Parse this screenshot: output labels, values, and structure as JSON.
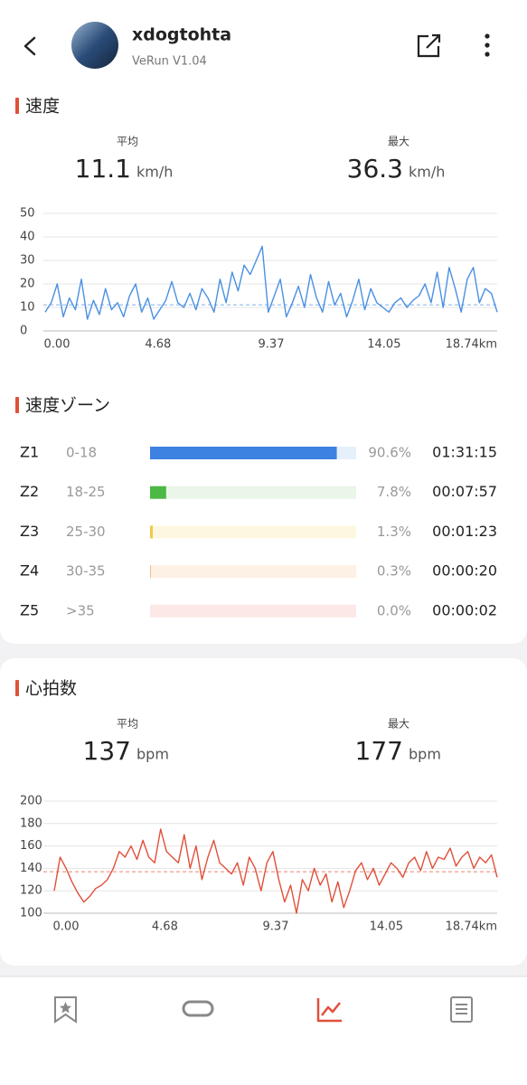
{
  "header": {
    "title": "xdogtohta",
    "subtitle": "VeRun V1.04"
  },
  "speed_stats": {
    "title": "速度",
    "average": {
      "label": "平均",
      "value": 11.1,
      "unit": "km/h"
    },
    "max": {
      "label": "最大",
      "value": 36.3,
      "unit": "km/h"
    }
  },
  "speed_zones": {
    "title": "速度ゾーン",
    "rows": [
      {
        "zone": "Z1",
        "range": "0-18",
        "percent": 90.6,
        "percent_label": "90.6%",
        "time": "01:31:15",
        "color": "#3d82e0",
        "track": "#e5f0fb"
      },
      {
        "zone": "Z2",
        "range": "18-25",
        "percent": 7.8,
        "percent_label": "7.8%",
        "time": "00:07:57",
        "color": "#4cb845",
        "track": "#e9f6e8"
      },
      {
        "zone": "Z3",
        "range": "25-30",
        "percent": 1.3,
        "percent_label": "1.3%",
        "time": "00:01:23",
        "color": "#f2c744",
        "track": "#fdf7e2"
      },
      {
        "zone": "Z4",
        "range": "30-35",
        "percent": 0.3,
        "percent_label": "0.3%",
        "time": "00:00:20",
        "color": "#f0a560",
        "track": "#fdf0e4"
      },
      {
        "zone": "Z5",
        "range": ">35",
        "percent": 0.0,
        "percent_label": "0.0%",
        "time": "00:00:02",
        "color": "#ee6b6b",
        "track": "#fde8e8"
      }
    ]
  },
  "heart_stats": {
    "title": "心拍数",
    "average": {
      "label": "平均",
      "value": 137,
      "unit": "bpm"
    },
    "max": {
      "label": "最大",
      "value": 177,
      "unit": "bpm"
    }
  },
  "chart_data": [
    {
      "type": "line",
      "color": "#4a90e2",
      "grid": true,
      "x": [
        0,
        0.25,
        0.5,
        0.75,
        1,
        1.25,
        1.5,
        1.75,
        2,
        2.25,
        2.5,
        2.75,
        3,
        3.25,
        3.5,
        3.75,
        4,
        4.25,
        4.5,
        4.75,
        5,
        5.25,
        5.5,
        5.75,
        6,
        6.25,
        6.5,
        6.75,
        7,
        7.25,
        7.5,
        7.75,
        8,
        8.25,
        8.5,
        8.75,
        9,
        9.25,
        9.5,
        9.75,
        10,
        10.25,
        10.5,
        10.75,
        11,
        11.25,
        11.5,
        11.75,
        12,
        12.25,
        12.5,
        12.75,
        13,
        13.25,
        13.5,
        13.75,
        14,
        14.25,
        14.5,
        14.75,
        15,
        15.25,
        15.5,
        15.75,
        16,
        16.25,
        16.5,
        16.75,
        17,
        17.25,
        17.5,
        17.75,
        18,
        18.25,
        18.5,
        18.74
      ],
      "values": [
        8,
        12,
        20,
        6,
        14,
        9,
        22,
        5,
        13,
        7,
        18,
        9,
        12,
        6,
        15,
        20,
        8,
        14,
        5,
        9,
        13,
        21,
        12,
        10,
        16,
        9,
        18,
        14,
        8,
        22,
        12,
        25,
        17,
        28,
        24,
        30,
        36,
        8,
        15,
        22,
        6,
        12,
        19,
        10,
        24,
        14,
        8,
        21,
        11,
        16,
        6,
        13,
        22,
        9,
        18,
        12,
        10,
        8,
        12,
        14,
        10,
        13,
        15,
        20,
        12,
        25,
        10,
        27,
        18,
        8,
        22,
        27,
        12,
        18,
        16,
        8
      ],
      "xlim": [
        0,
        18.74
      ],
      "xticks": [
        {
          "value": 0,
          "label": "0.00"
        },
        4.68,
        9.37,
        14.05,
        {
          "value": 18.74,
          "label": "18.74km"
        }
      ],
      "ylim": [
        0,
        50
      ],
      "yticks": [
        0,
        10,
        20,
        30,
        40,
        50
      ]
    },
    {
      "type": "line",
      "color": "#e0503a",
      "grid": true,
      "x": [
        0,
        0.25,
        0.5,
        0.75,
        1,
        1.25,
        1.5,
        1.75,
        2,
        2.25,
        2.5,
        2.75,
        3,
        3.25,
        3.5,
        3.75,
        4,
        4.25,
        4.5,
        4.75,
        5,
        5.25,
        5.5,
        5.75,
        6,
        6.25,
        6.5,
        6.75,
        7,
        7.25,
        7.5,
        7.75,
        8,
        8.25,
        8.5,
        8.75,
        9,
        9.25,
        9.5,
        9.75,
        10,
        10.25,
        10.5,
        10.75,
        11,
        11.25,
        11.5,
        11.75,
        12,
        12.25,
        12.5,
        12.75,
        13,
        13.25,
        13.5,
        13.75,
        14,
        14.25,
        14.5,
        14.75,
        15,
        15.25,
        15.5,
        15.75,
        16,
        16.25,
        16.5,
        16.75,
        17,
        17.25,
        17.5,
        17.75,
        18,
        18.25,
        18.5,
        18.74
      ],
      "values": [
        120,
        150,
        140,
        128,
        118,
        110,
        115,
        122,
        125,
        130,
        140,
        155,
        150,
        160,
        148,
        165,
        150,
        145,
        175,
        155,
        150,
        145,
        170,
        140,
        160,
        130,
        150,
        165,
        145,
        140,
        135,
        145,
        125,
        150,
        140,
        120,
        145,
        155,
        130,
        110,
        125,
        100,
        130,
        120,
        140,
        125,
        135,
        110,
        128,
        105,
        120,
        138,
        145,
        130,
        140,
        125,
        135,
        145,
        140,
        132,
        145,
        150,
        138,
        155,
        140,
        150,
        148,
        158,
        142,
        150,
        155,
        140,
        150,
        145,
        152,
        132
      ],
      "xlim": [
        0,
        18.74
      ],
      "xticks": [
        {
          "value": 0,
          "label": "0.00"
        },
        4.68,
        9.37,
        14.05,
        {
          "value": 18.74,
          "label": "18.74km"
        }
      ],
      "ylim": [
        100,
        200
      ],
      "yticks": [
        100,
        120,
        140,
        160,
        180,
        200
      ]
    }
  ]
}
